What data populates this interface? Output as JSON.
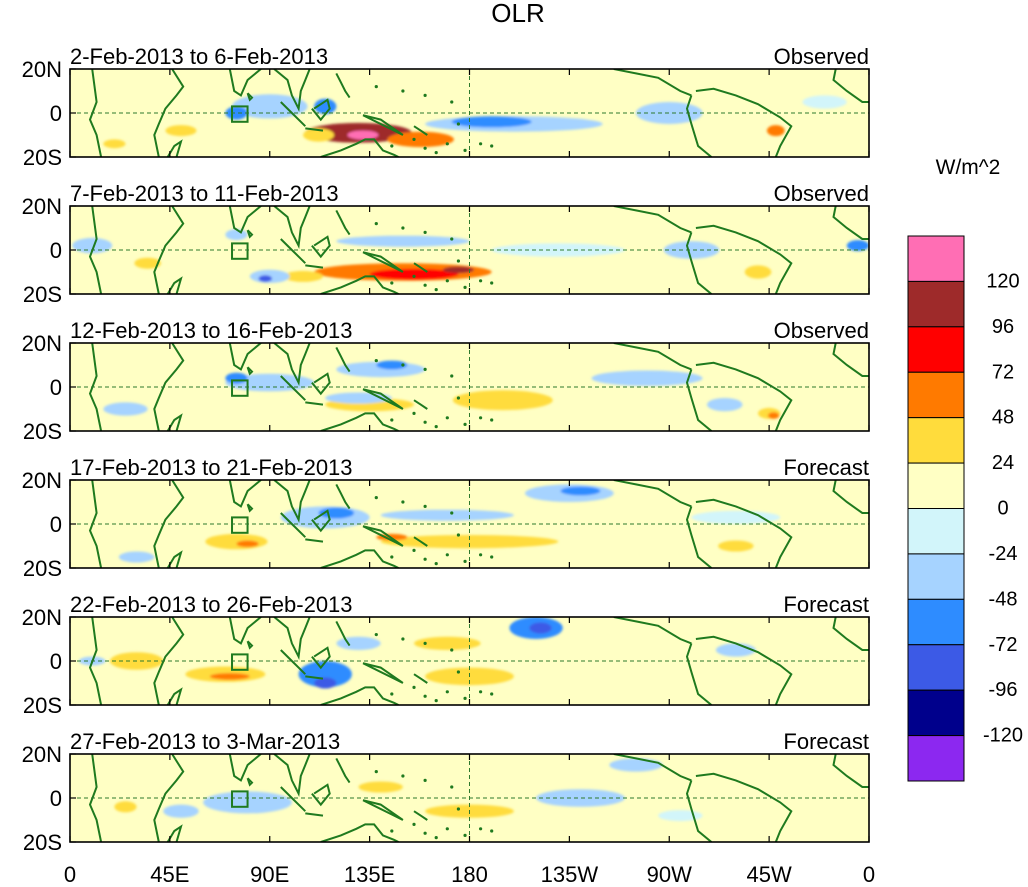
{
  "chart_data": {
    "type": "heatmap",
    "title": "OLR",
    "units_label": "W/m^2",
    "x_tick_labels": [
      "0",
      "45E",
      "90E",
      "135E",
      "180",
      "135W",
      "90W",
      "45W",
      "0"
    ],
    "x_ticks_deg": [
      0,
      45,
      90,
      135,
      180,
      225,
      270,
      315,
      360
    ],
    "xlim": [
      0,
      360
    ],
    "y_tick_labels": [
      "20N",
      "0",
      "20S"
    ],
    "y_ticks_deg": [
      20,
      0,
      -20
    ],
    "ylim": [
      -20,
      20
    ],
    "colorbar": {
      "tick_labels": [
        "120",
        "96",
        "72",
        "48",
        "24",
        "0",
        "-24",
        "-48",
        "-72",
        "-96",
        "-120"
      ],
      "colors": [
        "#ff6eb4",
        "#9e2a2a",
        "#ff0000",
        "#ff7a00",
        "#ffdc3c",
        "#ffffc4",
        "#d2f5fa",
        "#a6d3ff",
        "#2e8cff",
        "#3c5ae6",
        "#00008c",
        "#8c28f0"
      ]
    },
    "panels": [
      {
        "date_range": "2-Feb-2013 to 6-Feb-2013",
        "kind": "Observed",
        "anomalies": [
          {
            "lon": 130,
            "lat": -9,
            "width": 48,
            "height": 9,
            "value": 110
          },
          {
            "lon": 132,
            "lat": -10,
            "width": 14,
            "height": 4,
            "value": 130
          },
          {
            "lon": 158,
            "lat": -12,
            "width": 30,
            "height": 7,
            "value": 50
          },
          {
            "lon": 112,
            "lat": -10,
            "width": 14,
            "height": 6,
            "value": 30
          },
          {
            "lon": 50,
            "lat": -8,
            "width": 14,
            "height": 5,
            "value": 35
          },
          {
            "lon": 20,
            "lat": -14,
            "width": 10,
            "height": 4,
            "value": 30
          },
          {
            "lon": 168,
            "lat": 3,
            "width": 24,
            "height": 8,
            "value": 20
          },
          {
            "lon": 318,
            "lat": -8,
            "width": 8,
            "height": 5,
            "value": 50
          },
          {
            "lon": 90,
            "lat": 3,
            "width": 34,
            "height": 11,
            "value": -35
          },
          {
            "lon": 75,
            "lat": 0,
            "width": 10,
            "height": 6,
            "value": -52
          },
          {
            "lon": 115,
            "lat": 3,
            "width": 10,
            "height": 7,
            "value": -52
          },
          {
            "lon": 200,
            "lat": -5,
            "width": 80,
            "height": 7,
            "value": -30
          },
          {
            "lon": 190,
            "lat": -4,
            "width": 36,
            "height": 5,
            "value": -55
          },
          {
            "lon": 270,
            "lat": 0,
            "width": 30,
            "height": 10,
            "value": -28
          },
          {
            "lon": 340,
            "lat": 5,
            "width": 20,
            "height": 6,
            "value": -20
          }
        ]
      },
      {
        "date_range": "7-Feb-2013 to 11-Feb-2013",
        "kind": "Observed",
        "anomalies": [
          {
            "lon": 150,
            "lat": -10,
            "width": 80,
            "height": 8,
            "value": 60
          },
          {
            "lon": 155,
            "lat": -11,
            "width": 40,
            "height": 5,
            "value": 85
          },
          {
            "lon": 175,
            "lat": -9,
            "width": 14,
            "height": 3,
            "value": 100
          },
          {
            "lon": 105,
            "lat": -12,
            "width": 18,
            "height": 5,
            "value": 30
          },
          {
            "lon": 310,
            "lat": -10,
            "width": 12,
            "height": 6,
            "value": 30
          },
          {
            "lon": 35,
            "lat": -6,
            "width": 12,
            "height": 5,
            "value": 25
          },
          {
            "lon": 90,
            "lat": -12,
            "width": 18,
            "height": 6,
            "value": -40
          },
          {
            "lon": 88,
            "lat": -13,
            "width": 6,
            "height": 3,
            "value": -80
          },
          {
            "lon": 10,
            "lat": 2,
            "width": 18,
            "height": 7,
            "value": -40
          },
          {
            "lon": 355,
            "lat": 2,
            "width": 10,
            "height": 5,
            "value": -50
          },
          {
            "lon": 150,
            "lat": 4,
            "width": 60,
            "height": 5,
            "value": -25
          },
          {
            "lon": 220,
            "lat": 0,
            "width": 60,
            "height": 6,
            "value": -22
          },
          {
            "lon": 280,
            "lat": 0,
            "width": 25,
            "height": 8,
            "value": -30
          },
          {
            "lon": 75,
            "lat": 7,
            "width": 10,
            "height": 5,
            "value": -40
          }
        ]
      },
      {
        "date_range": "12-Feb-2013 to 16-Feb-2013",
        "kind": "Observed",
        "anomalies": [
          {
            "lon": 195,
            "lat": -6,
            "width": 45,
            "height": 9,
            "value": 30
          },
          {
            "lon": 135,
            "lat": -8,
            "width": 40,
            "height": 6,
            "value": 25
          },
          {
            "lon": 60,
            "lat": -5,
            "width": 20,
            "height": 5,
            "value": 20
          },
          {
            "lon": 315,
            "lat": -12,
            "width": 10,
            "height": 5,
            "value": 45
          },
          {
            "lon": 317,
            "lat": -13,
            "width": 5,
            "height": 3,
            "value": 60
          },
          {
            "lon": 90,
            "lat": 2,
            "width": 40,
            "height": 8,
            "value": -30
          },
          {
            "lon": 75,
            "lat": 4,
            "width": 10,
            "height": 5,
            "value": -50
          },
          {
            "lon": 140,
            "lat": 8,
            "width": 40,
            "height": 7,
            "value": -35
          },
          {
            "lon": 145,
            "lat": 10,
            "width": 14,
            "height": 4,
            "value": -55
          },
          {
            "lon": 130,
            "lat": -5,
            "width": 30,
            "height": 5,
            "value": -25
          },
          {
            "lon": 260,
            "lat": 4,
            "width": 50,
            "height": 7,
            "value": -25
          },
          {
            "lon": 25,
            "lat": -10,
            "width": 20,
            "height": 6,
            "value": -25
          },
          {
            "lon": 295,
            "lat": -8,
            "width": 16,
            "height": 6,
            "value": -30
          }
        ]
      },
      {
        "date_range": "17-Feb-2013 to 21-Feb-2013",
        "kind": "Forecast",
        "anomalies": [
          {
            "lon": 75,
            "lat": -8,
            "width": 28,
            "height": 7,
            "value": 40
          },
          {
            "lon": 80,
            "lat": -9,
            "width": 10,
            "height": 3,
            "value": 55
          },
          {
            "lon": 180,
            "lat": -8,
            "width": 80,
            "height": 6,
            "value": 25
          },
          {
            "lon": 145,
            "lat": -6,
            "width": 14,
            "height": 3,
            "value": 55
          },
          {
            "lon": 300,
            "lat": -10,
            "width": 16,
            "height": 5,
            "value": 25
          },
          {
            "lon": 115,
            "lat": 3,
            "width": 40,
            "height": 10,
            "value": -35
          },
          {
            "lon": 120,
            "lat": 5,
            "width": 16,
            "height": 5,
            "value": -55
          },
          {
            "lon": 170,
            "lat": 4,
            "width": 60,
            "height": 5,
            "value": -40
          },
          {
            "lon": 225,
            "lat": 14,
            "width": 40,
            "height": 8,
            "value": -45
          },
          {
            "lon": 230,
            "lat": 15,
            "width": 18,
            "height": 4,
            "value": -60
          },
          {
            "lon": 30,
            "lat": -15,
            "width": 16,
            "height": 5,
            "value": -30
          },
          {
            "lon": 300,
            "lat": 3,
            "width": 40,
            "height": 6,
            "value": -20
          }
        ]
      },
      {
        "date_range": "22-Feb-2013 to 26-Feb-2013",
        "kind": "Forecast",
        "anomalies": [
          {
            "lon": 70,
            "lat": -6,
            "width": 36,
            "height": 7,
            "value": 45
          },
          {
            "lon": 72,
            "lat": -7,
            "width": 18,
            "height": 3,
            "value": 70
          },
          {
            "lon": 180,
            "lat": -7,
            "width": 40,
            "height": 8,
            "value": 30
          },
          {
            "lon": 170,
            "lat": 8,
            "width": 30,
            "height": 6,
            "value": 30
          },
          {
            "lon": 30,
            "lat": 0,
            "width": 24,
            "height": 8,
            "value": 30
          },
          {
            "lon": 270,
            "lat": -4,
            "width": 20,
            "height": 7,
            "value": 20
          },
          {
            "lon": 115,
            "lat": -6,
            "width": 24,
            "height": 12,
            "value": -50
          },
          {
            "lon": 115,
            "lat": -10,
            "width": 10,
            "height": 5,
            "value": -85
          },
          {
            "lon": 210,
            "lat": 15,
            "width": 24,
            "height": 10,
            "value": -60
          },
          {
            "lon": 212,
            "lat": 15,
            "width": 10,
            "height": 5,
            "value": -80
          },
          {
            "lon": 130,
            "lat": 8,
            "width": 20,
            "height": 6,
            "value": -30
          },
          {
            "lon": 300,
            "lat": 5,
            "width": 18,
            "height": 6,
            "value": -35
          },
          {
            "lon": 10,
            "lat": 0,
            "width": 12,
            "height": 4,
            "value": -25
          }
        ]
      },
      {
        "date_range": "27-Feb-2013 to 3-Mar-2013",
        "kind": "Forecast",
        "anomalies": [
          {
            "lon": 180,
            "lat": -6,
            "width": 40,
            "height": 6,
            "value": 30
          },
          {
            "lon": 140,
            "lat": 5,
            "width": 20,
            "height": 5,
            "value": 25
          },
          {
            "lon": 25,
            "lat": -4,
            "width": 10,
            "height": 5,
            "value": 25
          },
          {
            "lon": 110,
            "lat": -8,
            "width": 20,
            "height": 5,
            "value": 20
          },
          {
            "lon": 340,
            "lat": 15,
            "width": 30,
            "height": 5,
            "value": 20
          },
          {
            "lon": 80,
            "lat": -2,
            "width": 40,
            "height": 10,
            "value": -25
          },
          {
            "lon": 50,
            "lat": -6,
            "width": 16,
            "height": 6,
            "value": -30
          },
          {
            "lon": 230,
            "lat": 0,
            "width": 40,
            "height": 8,
            "value": -25
          },
          {
            "lon": 255,
            "lat": 15,
            "width": 24,
            "height": 6,
            "value": -30
          },
          {
            "lon": 275,
            "lat": -8,
            "width": 20,
            "height": 5,
            "value": -22
          }
        ]
      }
    ]
  }
}
